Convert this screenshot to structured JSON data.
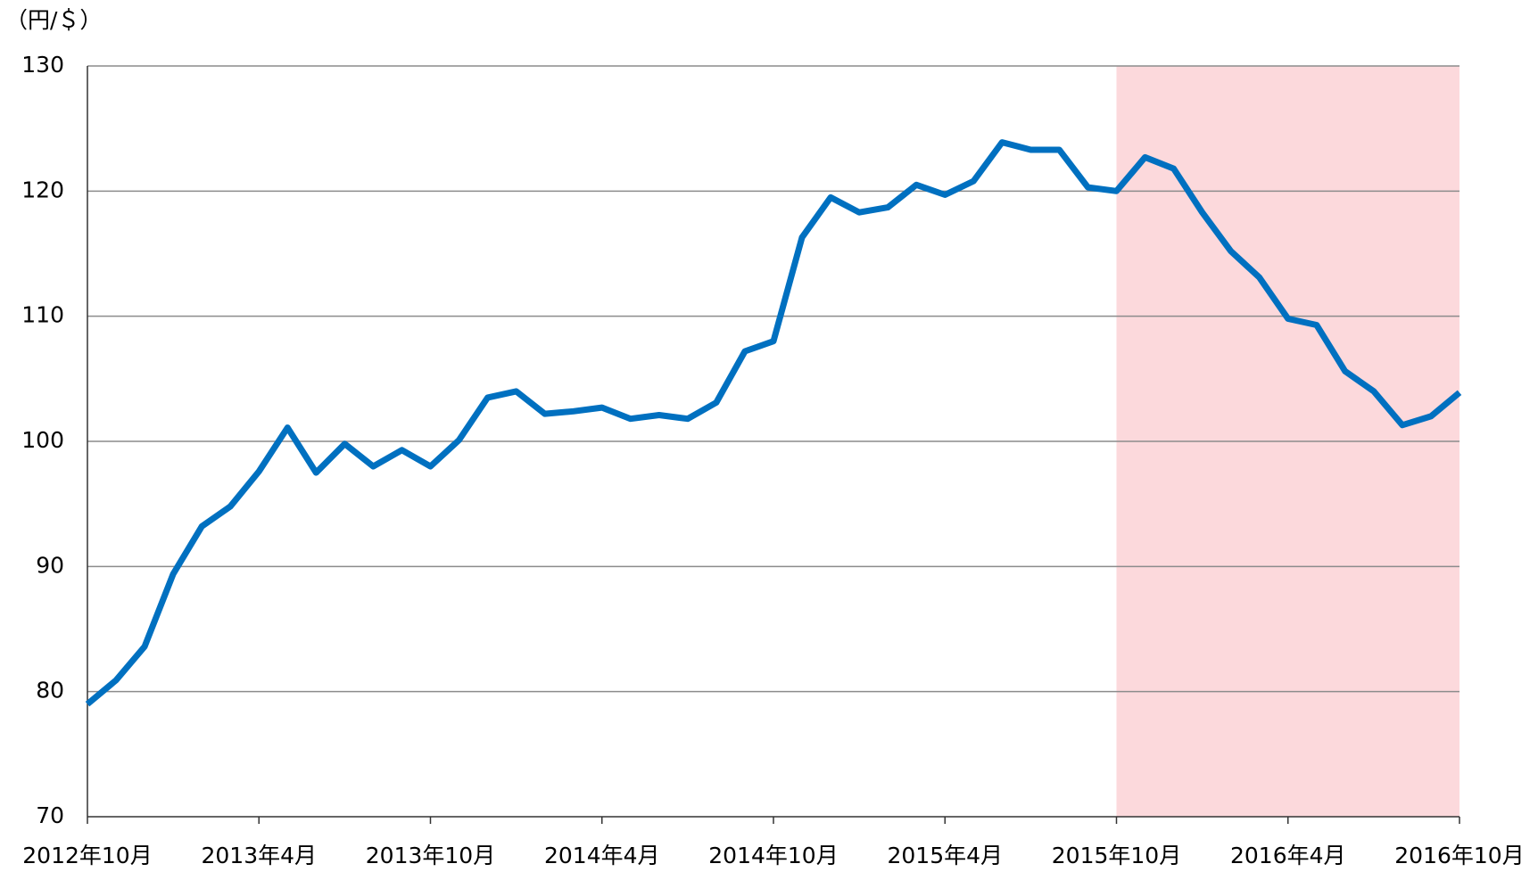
{
  "chart_data": {
    "type": "line",
    "y_label": "（円/＄）",
    "categories": [
      "2012年10月",
      null,
      null,
      null,
      null,
      null,
      "2013年4月",
      null,
      null,
      null,
      null,
      null,
      "2013年10月",
      null,
      null,
      null,
      null,
      null,
      "2014年4月",
      null,
      null,
      null,
      null,
      null,
      "2014年10月",
      null,
      null,
      null,
      null,
      null,
      "2015年4月",
      null,
      null,
      null,
      null,
      null,
      "2015年10月",
      null,
      null,
      null,
      null,
      null,
      "2016年4月",
      null,
      null,
      null,
      null,
      null,
      "2016年10月"
    ],
    "series": [
      {
        "color": "#0070c0",
        "values": [
          79.0,
          80.9,
          83.6,
          89.4,
          93.2,
          94.8,
          97.6,
          101.1,
          97.5,
          99.8,
          98.0,
          99.3,
          98.0,
          100.1,
          103.5,
          104.0,
          102.2,
          102.4,
          102.7,
          101.8,
          102.1,
          101.8,
          103.1,
          107.2,
          108.0,
          116.3,
          119.5,
          118.3,
          118.7,
          120.5,
          119.7,
          120.8,
          123.9,
          123.3,
          123.3,
          120.3,
          120.0,
          122.7,
          121.8,
          118.3,
          115.2,
          113.1,
          109.8,
          109.3,
          105.6,
          104.0,
          101.3,
          102.0,
          103.9
        ]
      }
    ],
    "highlight": {
      "from": "2015年10月",
      "to": "2016年10月",
      "color": "#fcd9dc"
    },
    "ylim": [
      70,
      130
    ],
    "yticks": [
      70,
      80,
      90,
      100,
      110,
      120,
      130
    ],
    "grid": true
  }
}
